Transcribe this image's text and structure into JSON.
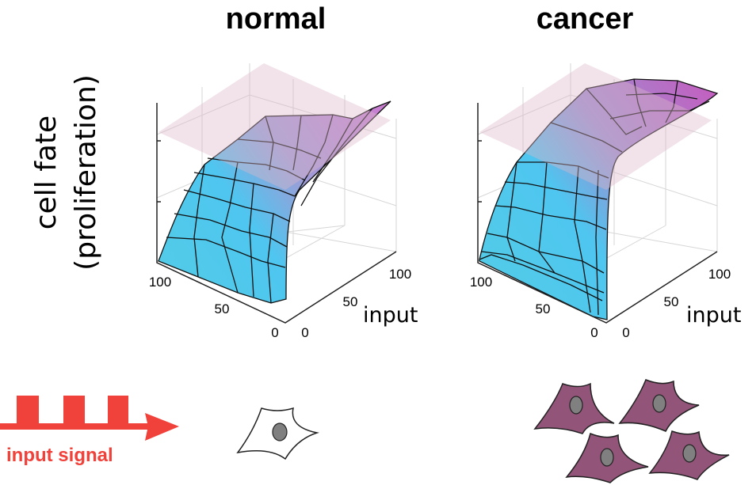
{
  "panels": {
    "normal": {
      "title": "normal",
      "x_ticks": [
        "100",
        "50",
        "0"
      ],
      "y_ticks": [
        "0",
        "50",
        "100"
      ],
      "axis_label": "input"
    },
    "cancer": {
      "title": "cancer",
      "x_ticks": [
        "100",
        "50",
        "0"
      ],
      "y_ticks": [
        "0",
        "50",
        "100"
      ],
      "axis_label": "input"
    }
  },
  "y_axis_label": {
    "line1": "cell fate",
    "line2": "(proliferation)"
  },
  "signal": {
    "label": "input signal",
    "color": "#f0423a"
  },
  "colors": {
    "surface_low": "#4cc8ee",
    "surface_high": "#c27ac8",
    "threshold_plane": "#dcb8c8",
    "cancer_cell": "#925478",
    "normal_cell": "#ffffff",
    "nucleus": "#808080"
  }
}
